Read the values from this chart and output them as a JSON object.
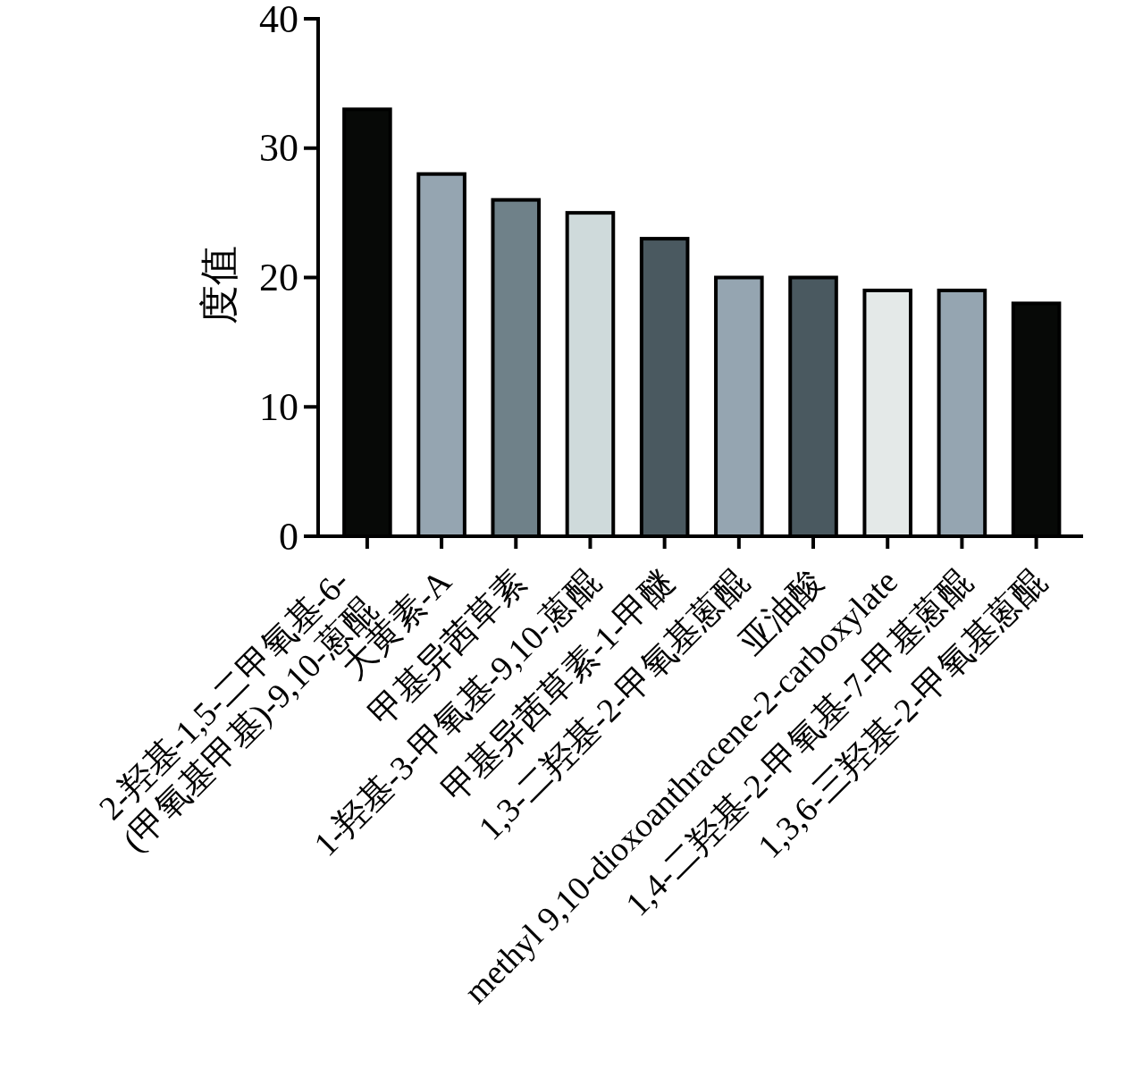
{
  "chart_data": {
    "type": "bar",
    "ylabel": "度值",
    "categories": [
      "2-羟基-1,5-二甲氧基-6-\n(甲氧基甲基)-9,10-蒽醌",
      "大黄素-A",
      "甲基异茜草素",
      "1-羟基-3-甲氧基-9,10-蒽醌",
      "甲基异茜草素-1-甲醚",
      "1,3-二羟基-2-甲氧基蒽醌",
      "亚油酸",
      "methyl 9,10-dioxoanthracene-2-carboxylate",
      "1,4-二羟基-2-甲氧基-7-甲基蒽醌",
      "1,3,6-三羟基-2-甲氧基蒽醌"
    ],
    "values": [
      33,
      28,
      26,
      25,
      23,
      20,
      20,
      19,
      19,
      18
    ],
    "colors": [
      "#070907",
      "#95a5b1",
      "#6f8189",
      "#cfdadb",
      "#4a5960",
      "#95a5b1",
      "#4a5960",
      "#e4e9e8",
      "#95a5b1",
      "#070907"
    ],
    "ylim": [
      0,
      40
    ],
    "yticks": [
      0,
      10,
      20,
      30,
      40
    ]
  }
}
